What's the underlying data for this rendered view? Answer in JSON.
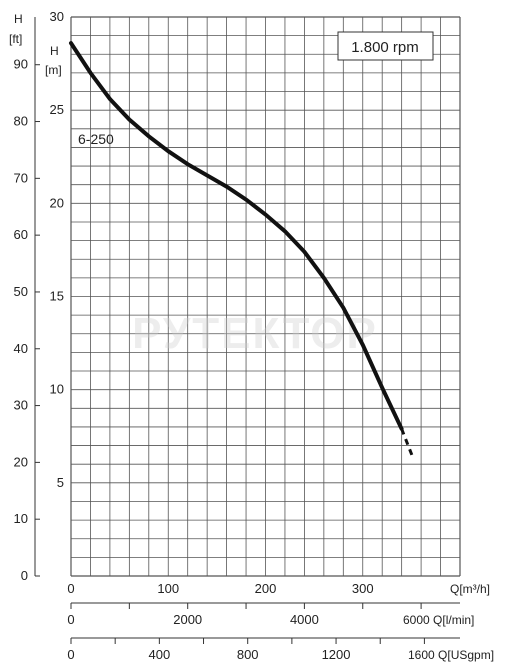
{
  "chart_data": {
    "type": "line",
    "title": "",
    "speed_label": "1.800 rpm",
    "series": [
      {
        "name": "6-250",
        "x_m3h": [
          0,
          20,
          40,
          60,
          80,
          100,
          120,
          140,
          160,
          180,
          200,
          220,
          240,
          260,
          280,
          300,
          320,
          340
        ],
        "y_m": [
          28.6,
          27.0,
          25.6,
          24.5,
          23.6,
          22.8,
          22.1,
          21.5,
          20.9,
          20.2,
          19.4,
          18.5,
          17.4,
          16.0,
          14.4,
          12.4,
          10.1,
          7.9
        ],
        "extension_x_m3h": [
          340,
          352
        ],
        "extension_y_m": [
          7.9,
          6.3
        ]
      }
    ],
    "axes": {
      "h_m": {
        "label_top": "H",
        "label_unit": "[m]",
        "range": [
          0,
          30
        ],
        "ticks": [
          "30",
          "25",
          "20",
          "15",
          "10",
          "5"
        ]
      },
      "h_ft": {
        "label_top": "H",
        "label_unit": "[ft]",
        "range": [
          0,
          98.4
        ],
        "ticks": [
          "90",
          "80",
          "70",
          "60",
          "50",
          "40",
          "30",
          "20",
          "10",
          "0"
        ]
      },
      "q_m3h": {
        "label": "Q[m³/h]",
        "range": [
          0,
          400
        ],
        "ticks": [
          "0",
          "100",
          "200",
          "300"
        ]
      },
      "q_lmin": {
        "label": "6000 Q[l/min]",
        "ticks": [
          "0",
          "2000",
          "4000"
        ]
      },
      "q_usgpm": {
        "label": "1600 Q[USgpm]",
        "ticks": [
          "0",
          "400",
          "800",
          "1200"
        ]
      }
    },
    "grid": true,
    "watermark": "РУТЕКТОР"
  }
}
